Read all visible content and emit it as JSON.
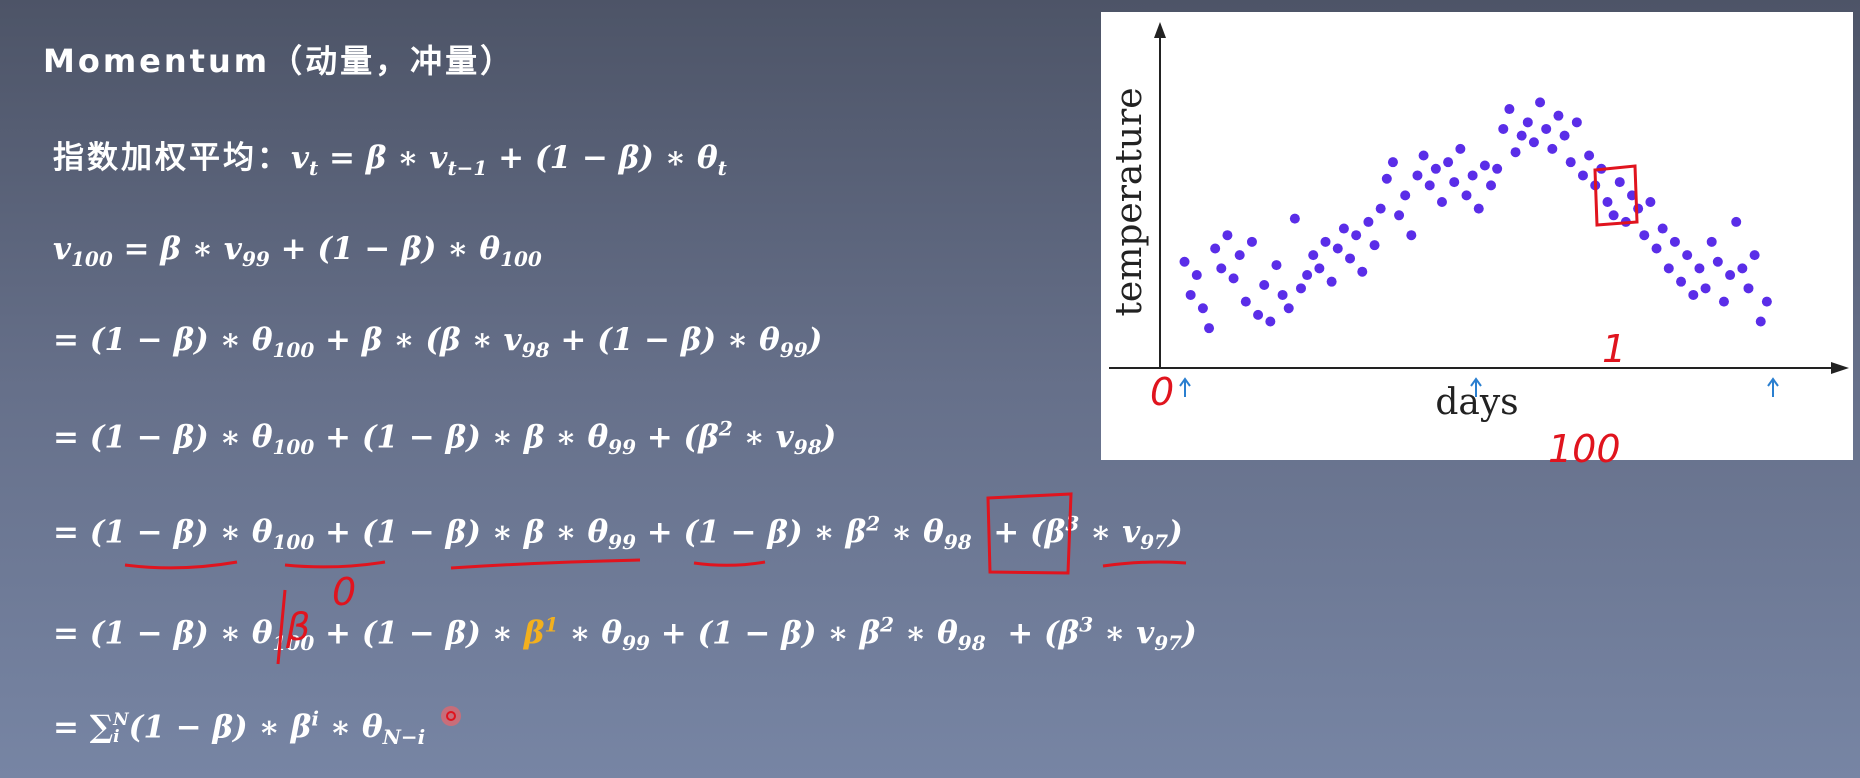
{
  "title": "Momentum（动量，冲量）",
  "lines": [
    {
      "label": "指数加权平均：",
      "parts": [
        {
          "base": "v",
          "sub": "t"
        },
        " = β ∗ ",
        {
          "base": "v",
          "sub": "t−1"
        },
        " + (1 − β) ∗ ",
        {
          "base": "θ",
          "sub": "t"
        }
      ]
    },
    {
      "parts": [
        {
          "base": "v",
          "sub": "100"
        },
        " = β ∗ ",
        {
          "base": "v",
          "sub": "99"
        },
        " + (1 − β) ∗ ",
        {
          "base": "θ",
          "sub": "100"
        }
      ]
    },
    {
      "parts": [
        "= (1 − β) ∗ ",
        {
          "base": "θ",
          "sub": "100"
        },
        " + β ∗ (β ∗ ",
        {
          "base": "v",
          "sub": "98"
        },
        " + (1 − β) ∗ ",
        {
          "base": "θ",
          "sub": "99"
        },
        ")"
      ]
    },
    {
      "parts": [
        "= (1 − β) ∗ ",
        {
          "base": "θ",
          "sub": "100"
        },
        " + (1 − β) ∗ β ∗ ",
        {
          "base": "θ",
          "sub": "99"
        },
        " + (",
        {
          "base": "β",
          "sup": "2"
        },
        " ∗ ",
        {
          "base": "v",
          "sub": "98"
        },
        ")"
      ]
    },
    {
      "parts": [
        "= (1 − β) ∗ ",
        {
          "base": "θ",
          "sub": "100"
        },
        " + (1 − β) ∗ β ∗ ",
        {
          "base": "θ",
          "sub": "99"
        },
        " + (1 − β) ∗ ",
        {
          "base": "β",
          "sup": "2"
        },
        " ∗ ",
        {
          "base": "θ",
          "sub": "98"
        },
        "  + (",
        {
          "base": "β",
          "sup": "3"
        },
        " ∗ ",
        {
          "base": "v",
          "sub": "97"
        },
        ")"
      ]
    },
    {
      "parts": [
        "= (1 − β) ∗ ",
        {
          "base": "θ",
          "sub": "100"
        },
        " + (1 − β) ∗ ",
        {
          "base": "β",
          "sup": "1",
          "color": "#f2b01e"
        },
        " ∗ ",
        {
          "base": "θ",
          "sub": "99"
        },
        " + (1 − β) ∗ ",
        {
          "base": "β",
          "sup": "2"
        },
        " ∗ ",
        {
          "base": "θ",
          "sub": "98"
        },
        "  + (",
        {
          "base": "β",
          "sup": "3"
        },
        " ∗ ",
        {
          "base": "v",
          "sub": "97"
        },
        ")"
      ]
    },
    {
      "parts": [
        "= ",
        {
          "base": "∑",
          "sub": "i",
          "sup": "N"
        },
        "(1 − β) ∗ ",
        {
          "base": "β",
          "sup": "i"
        },
        " ∗ ",
        {
          "base": "θ",
          "sub": "N−i"
        }
      ]
    }
  ],
  "figure": {
    "type": "scatter",
    "x_label": "days",
    "y_label": "temperature",
    "color": "#5a2de8",
    "xlim": [
      0,
      100
    ],
    "ylim": [
      0,
      100
    ],
    "x": [
      4,
      5,
      6,
      7,
      8,
      9,
      10,
      11,
      12,
      13,
      14,
      15,
      16,
      17,
      18,
      19,
      20,
      21,
      22,
      23,
      24,
      25,
      26,
      27,
      28,
      29,
      30,
      31,
      32,
      33,
      34,
      35,
      36,
      37,
      38,
      39,
      40,
      41,
      42,
      43,
      44,
      45,
      46,
      47,
      48,
      49,
      50,
      51,
      52,
      53,
      54,
      55,
      56,
      57,
      58,
      59,
      60,
      61,
      62,
      63,
      64,
      65,
      66,
      67,
      68,
      69,
      70,
      71,
      72,
      73,
      74,
      75,
      76,
      77,
      78,
      79,
      80,
      81,
      82,
      83,
      84,
      85,
      86,
      87,
      88,
      89,
      90,
      91,
      92,
      93,
      94,
      95,
      96,
      97,
      98,
      99
    ],
    "y": [
      32,
      22,
      28,
      18,
      12,
      36,
      30,
      40,
      27,
      34,
      20,
      38,
      16,
      25,
      14,
      31,
      22,
      18,
      45,
      24,
      28,
      34,
      30,
      38,
      26,
      36,
      42,
      33,
      40,
      29,
      44,
      37,
      48,
      57,
      62,
      46,
      52,
      40,
      58,
      64,
      55,
      60,
      50,
      62,
      56,
      66,
      52,
      58,
      48,
      61,
      55,
      60,
      72,
      78,
      65,
      70,
      74,
      68,
      80,
      72,
      66,
      76,
      70,
      62,
      74,
      58,
      64,
      55,
      60,
      50,
      46,
      56,
      44,
      52,
      48,
      40,
      50,
      36,
      42,
      30,
      38,
      26,
      34,
      22,
      30,
      24,
      38,
      32,
      20,
      28,
      44,
      30,
      24,
      34,
      14,
      20
    ]
  },
  "handwriting": [
    "β",
    "0",
    "0",
    "1",
    "100"
  ]
}
